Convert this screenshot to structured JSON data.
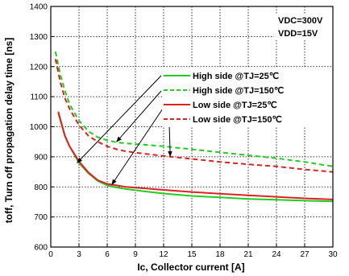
{
  "chart_data": {
    "type": "line",
    "xlabel": "Ic, Collector current [A]",
    "ylabel": "toff, Turn off propagation delay time [ns]",
    "xlim": [
      0,
      30
    ],
    "ylim": [
      600,
      1400
    ],
    "xticks": [
      "0",
      "3",
      "6",
      "9",
      "12",
      "15",
      "18",
      "21",
      "24",
      "27",
      "30"
    ],
    "yticks": [
      "600",
      "700",
      "800",
      "900",
      "1000",
      "1100",
      "1200",
      "1300",
      "1400"
    ],
    "grid": "dotted",
    "conditions": [
      "VDC=300V",
      "VDD=15V"
    ],
    "legend_position": "right-middle",
    "series": [
      {
        "name": "High side @TJ=25℃",
        "color": "#22cc22",
        "dash": "solid",
        "x": [
          0.8,
          1.5,
          2,
          3,
          4,
          5,
          6,
          7,
          8,
          10,
          12,
          15,
          18,
          21,
          24,
          27,
          30
        ],
        "y": [
          1045,
          970,
          935,
          880,
          845,
          820,
          805,
          798,
          793,
          785,
          778,
          770,
          765,
          760,
          757,
          754,
          752
        ]
      },
      {
        "name": "High side @TJ=150℃",
        "color": "#22cc22",
        "dash": "dashed",
        "x": [
          0.5,
          1,
          1.5,
          2,
          3,
          4,
          5,
          6,
          7,
          8,
          10,
          12,
          15,
          18,
          21,
          24,
          27,
          30
        ],
        "y": [
          1250,
          1175,
          1120,
          1075,
          1020,
          985,
          965,
          955,
          948,
          945,
          940,
          935,
          925,
          915,
          905,
          895,
          883,
          868
        ]
      },
      {
        "name": "Low side @TJ=25℃",
        "color": "#dd2222",
        "dash": "solid",
        "x": [
          0.8,
          1.5,
          2,
          3,
          4,
          5,
          6,
          7,
          8,
          10,
          12,
          15,
          18,
          21,
          24,
          27,
          30
        ],
        "y": [
          1050,
          970,
          935,
          885,
          848,
          822,
          810,
          805,
          800,
          795,
          790,
          783,
          777,
          772,
          767,
          762,
          758
        ]
      },
      {
        "name": "Low side @TJ=150℃",
        "color": "#dd2222",
        "dash": "dashed",
        "x": [
          0.5,
          1,
          1.5,
          2,
          3,
          4,
          5,
          6,
          7,
          8,
          10,
          12,
          15,
          18,
          21,
          24,
          27,
          30
        ],
        "y": [
          1225,
          1150,
          1095,
          1060,
          1005,
          970,
          950,
          935,
          925,
          918,
          910,
          903,
          893,
          883,
          875,
          868,
          858,
          850
        ]
      }
    ]
  }
}
